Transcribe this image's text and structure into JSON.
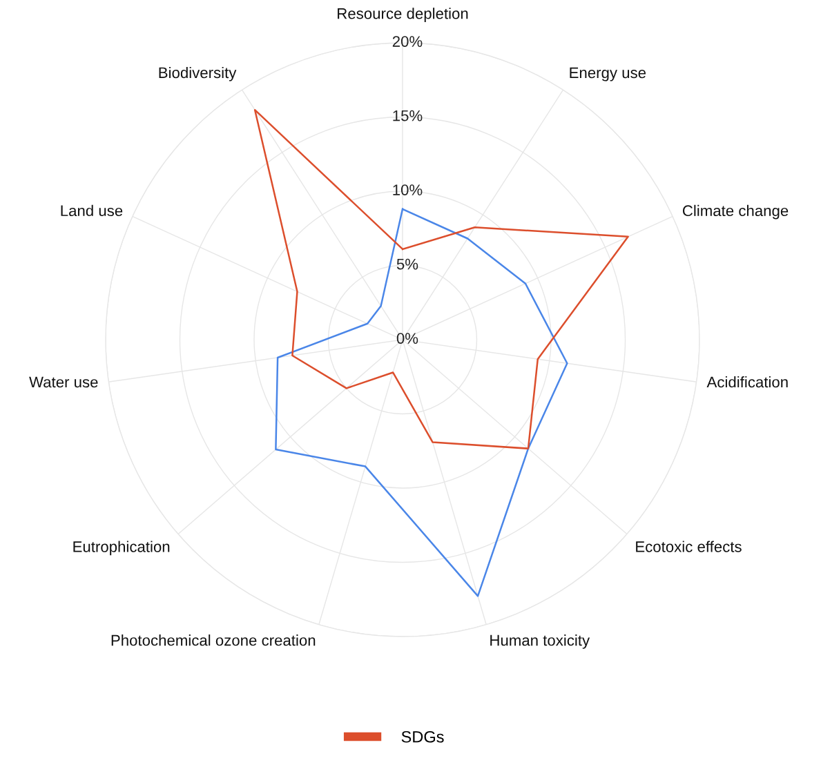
{
  "chart_data": {
    "type": "radar",
    "categories": [
      "Resource depletion",
      "Energy use",
      "Climate change",
      "Acidification",
      "Ecotoxic effects",
      "Human toxicity",
      "Photochemical ozone creation",
      "Eutrophication",
      "Water use",
      "Land use",
      "Biodiversity"
    ],
    "series": [
      {
        "color": "#4a86e8",
        "values": [
          8.8,
          8.1,
          9.1,
          11.2,
          11.2,
          18.0,
          8.9,
          11.3,
          8.5,
          2.6,
          2.7
        ]
      },
      {
        "name": "SDGs",
        "color": "#dc4e2c",
        "values": [
          6.1,
          9.0,
          16.7,
          9.2,
          11.2,
          7.2,
          2.3,
          5.0,
          7.5,
          7.8,
          18.4
        ]
      }
    ],
    "ylim": [
      0,
      20
    ],
    "yticks": [
      {
        "value": 0,
        "label": "0%"
      },
      {
        "value": 5,
        "label": "5%"
      },
      {
        "value": 10,
        "label": "10%"
      },
      {
        "value": 15,
        "label": "15%"
      },
      {
        "value": 20,
        "label": "20%"
      }
    ],
    "grid": true,
    "legend": "bottom"
  }
}
